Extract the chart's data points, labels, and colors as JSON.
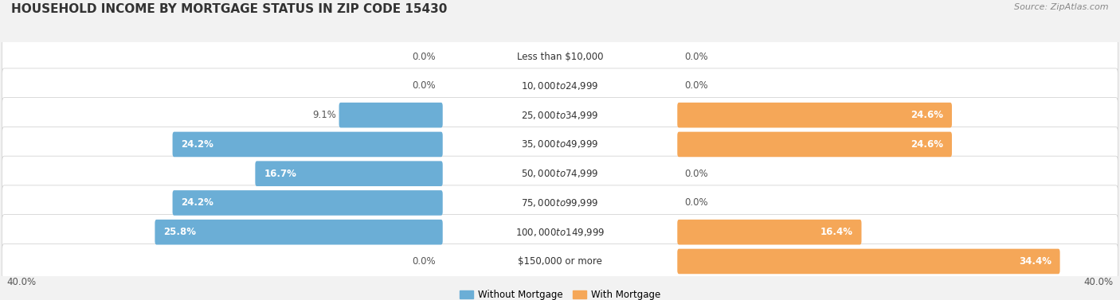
{
  "title": "HOUSEHOLD INCOME BY MORTGAGE STATUS IN ZIP CODE 15430",
  "source": "Source: ZipAtlas.com",
  "categories": [
    "Less than $10,000",
    "$10,000 to $24,999",
    "$25,000 to $34,999",
    "$35,000 to $49,999",
    "$50,000 to $74,999",
    "$75,000 to $99,999",
    "$100,000 to $149,999",
    "$150,000 or more"
  ],
  "without_mortgage": [
    0.0,
    0.0,
    9.1,
    24.2,
    16.7,
    24.2,
    25.8,
    0.0
  ],
  "with_mortgage": [
    0.0,
    0.0,
    24.6,
    24.6,
    0.0,
    0.0,
    16.4,
    34.4
  ],
  "color_without": "#6baed6",
  "color_with": "#f5a758",
  "color_without_faint": "#c6dbef",
  "color_with_faint": "#fdd0a2",
  "xlim": 40.0,
  "bg_color": "#f2f2f2",
  "row_bg_color": "#e8e8e8",
  "legend_label_without": "Without Mortgage",
  "legend_label_with": "With Mortgage",
  "title_fontsize": 11,
  "label_fontsize": 8.5,
  "source_fontsize": 8,
  "axis_label_fontsize": 8.5
}
